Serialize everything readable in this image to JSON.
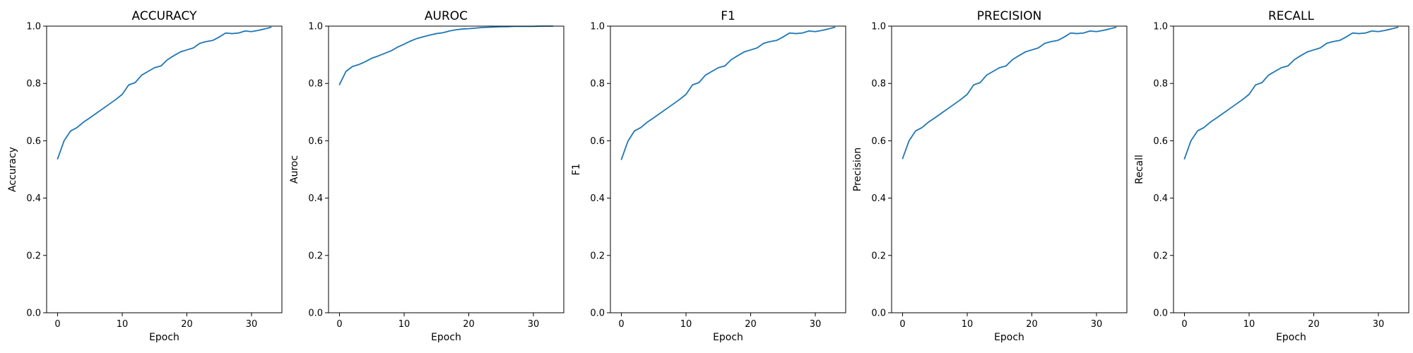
{
  "chart_data": [
    {
      "type": "line",
      "title": "ACCURACY",
      "xlabel": "Epoch",
      "ylabel": "Accuracy",
      "xlim": [
        -1.7,
        34.7
      ],
      "ylim": [
        0.0,
        1.0
      ],
      "xticks": [
        0,
        10,
        20,
        30
      ],
      "yticks": [
        0.0,
        0.2,
        0.4,
        0.6,
        0.8,
        1.0
      ],
      "grid": false,
      "series": [
        {
          "color": "#1f77b4",
          "x": [
            0,
            1,
            2,
            3,
            4,
            5,
            6,
            7,
            8,
            9,
            10,
            11,
            12,
            13,
            14,
            15,
            16,
            17,
            18,
            19,
            20,
            21,
            22,
            23,
            24,
            25,
            26,
            27,
            28,
            29,
            30,
            31,
            32,
            33
          ],
          "y": [
            0.537,
            0.6,
            0.634,
            0.646,
            0.665,
            0.68,
            0.696,
            0.712,
            0.728,
            0.744,
            0.762,
            0.795,
            0.803,
            0.829,
            0.842,
            0.855,
            0.861,
            0.883,
            0.897,
            0.91,
            0.917,
            0.924,
            0.94,
            0.946,
            0.95,
            0.962,
            0.976,
            0.974,
            0.976,
            0.983,
            0.981,
            0.985,
            0.99,
            0.996
          ]
        }
      ]
    },
    {
      "type": "line",
      "title": "AUROC",
      "xlabel": "Epoch",
      "ylabel": "Auroc",
      "xlim": [
        -1.7,
        34.7
      ],
      "ylim": [
        0.0,
        1.0
      ],
      "xticks": [
        0,
        10,
        20,
        30
      ],
      "yticks": [
        0.0,
        0.2,
        0.4,
        0.6,
        0.8,
        1.0
      ],
      "grid": false,
      "series": [
        {
          "color": "#1f77b4",
          "x": [
            0,
            1,
            2,
            3,
            4,
            5,
            6,
            7,
            8,
            9,
            10,
            11,
            12,
            13,
            14,
            15,
            16,
            17,
            18,
            19,
            20,
            21,
            22,
            23,
            24,
            25,
            26,
            27,
            28,
            29,
            30,
            31,
            32,
            33
          ],
          "y": [
            0.796,
            0.842,
            0.859,
            0.866,
            0.876,
            0.888,
            0.896,
            0.905,
            0.914,
            0.927,
            0.937,
            0.948,
            0.957,
            0.963,
            0.969,
            0.974,
            0.977,
            0.983,
            0.987,
            0.99,
            0.991,
            0.993,
            0.995,
            0.996,
            0.997,
            0.998,
            0.998,
            0.999,
            0.999,
            0.999,
            0.999,
            1.0,
            1.0,
            1.0
          ]
        }
      ]
    },
    {
      "type": "line",
      "title": "F1",
      "xlabel": "Epoch",
      "ylabel": "F1",
      "xlim": [
        -1.7,
        34.7
      ],
      "ylim": [
        0.0,
        1.0
      ],
      "xticks": [
        0,
        10,
        20,
        30
      ],
      "yticks": [
        0.0,
        0.2,
        0.4,
        0.6,
        0.8,
        1.0
      ],
      "grid": false,
      "series": [
        {
          "color": "#1f77b4",
          "x": [
            0,
            1,
            2,
            3,
            4,
            5,
            6,
            7,
            8,
            9,
            10,
            11,
            12,
            13,
            14,
            15,
            16,
            17,
            18,
            19,
            20,
            21,
            22,
            23,
            24,
            25,
            26,
            27,
            28,
            29,
            30,
            31,
            32,
            33
          ],
          "y": [
            0.535,
            0.598,
            0.634,
            0.646,
            0.665,
            0.68,
            0.696,
            0.712,
            0.728,
            0.744,
            0.762,
            0.795,
            0.803,
            0.829,
            0.842,
            0.855,
            0.861,
            0.883,
            0.897,
            0.91,
            0.917,
            0.924,
            0.94,
            0.946,
            0.95,
            0.962,
            0.976,
            0.974,
            0.976,
            0.983,
            0.981,
            0.985,
            0.99,
            0.996
          ]
        }
      ]
    },
    {
      "type": "line",
      "title": "PRECISION",
      "xlabel": "Epoch",
      "ylabel": "Precision",
      "xlim": [
        -1.7,
        34.7
      ],
      "ylim": [
        0.0,
        1.0
      ],
      "xticks": [
        0,
        10,
        20,
        30
      ],
      "yticks": [
        0.0,
        0.2,
        0.4,
        0.6,
        0.8,
        1.0
      ],
      "grid": false,
      "series": [
        {
          "color": "#1f77b4",
          "x": [
            0,
            1,
            2,
            3,
            4,
            5,
            6,
            7,
            8,
            9,
            10,
            11,
            12,
            13,
            14,
            15,
            16,
            17,
            18,
            19,
            20,
            21,
            22,
            23,
            24,
            25,
            26,
            27,
            28,
            29,
            30,
            31,
            32,
            33
          ],
          "y": [
            0.538,
            0.6,
            0.634,
            0.646,
            0.665,
            0.68,
            0.696,
            0.712,
            0.728,
            0.744,
            0.762,
            0.795,
            0.803,
            0.829,
            0.842,
            0.855,
            0.861,
            0.883,
            0.897,
            0.91,
            0.917,
            0.924,
            0.94,
            0.946,
            0.95,
            0.962,
            0.976,
            0.974,
            0.976,
            0.983,
            0.981,
            0.985,
            0.99,
            0.996
          ]
        }
      ]
    },
    {
      "type": "line",
      "title": "RECALL",
      "xlabel": "Epoch",
      "ylabel": "Recall",
      "xlim": [
        -1.7,
        34.7
      ],
      "ylim": [
        0.0,
        1.0
      ],
      "xticks": [
        0,
        10,
        20,
        30
      ],
      "yticks": [
        0.0,
        0.2,
        0.4,
        0.6,
        0.8,
        1.0
      ],
      "grid": false,
      "series": [
        {
          "color": "#1f77b4",
          "x": [
            0,
            1,
            2,
            3,
            4,
            5,
            6,
            7,
            8,
            9,
            10,
            11,
            12,
            13,
            14,
            15,
            16,
            17,
            18,
            19,
            20,
            21,
            22,
            23,
            24,
            25,
            26,
            27,
            28,
            29,
            30,
            31,
            32,
            33
          ],
          "y": [
            0.537,
            0.6,
            0.634,
            0.646,
            0.665,
            0.68,
            0.696,
            0.712,
            0.728,
            0.744,
            0.762,
            0.795,
            0.803,
            0.829,
            0.842,
            0.855,
            0.861,
            0.883,
            0.897,
            0.91,
            0.917,
            0.924,
            0.94,
            0.946,
            0.95,
            0.962,
            0.976,
            0.974,
            0.976,
            0.983,
            0.981,
            0.985,
            0.99,
            0.996
          ]
        }
      ]
    }
  ]
}
